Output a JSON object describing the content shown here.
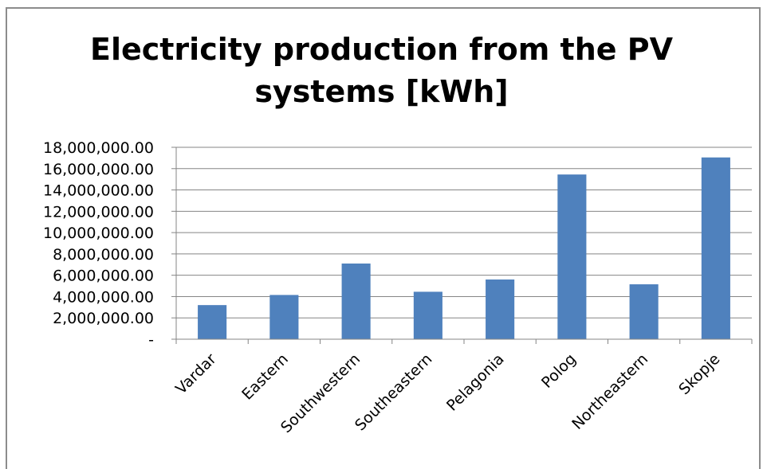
{
  "chart_data": {
    "type": "bar",
    "title_lines": [
      "Electricity production from the PV",
      "systems [kWh]"
    ],
    "categories": [
      "Vardar",
      "Eastern",
      "Southwestern",
      "Southeastern",
      "Pelagonia",
      "Polog",
      "Northeastern",
      "Skopje"
    ],
    "values": [
      3200000,
      4150000,
      7100000,
      4450000,
      5600000,
      15450000,
      5150000,
      17050000
    ],
    "ylim": [
      0,
      18000000
    ],
    "ytick_values": [
      0,
      2000000,
      4000000,
      6000000,
      8000000,
      10000000,
      12000000,
      14000000,
      16000000,
      18000000
    ],
    "ytick_labels": [
      "-",
      "2,000,000.00",
      "4,000,000.00",
      "6,000,000.00",
      "8,000,000.00",
      "10,000,000.00",
      "12,000,000.00",
      "14,000,000.00",
      "16,000,000.00",
      "18,000,000.00"
    ],
    "grid": true,
    "legend": "none",
    "bar_color": "#4f81bd"
  }
}
